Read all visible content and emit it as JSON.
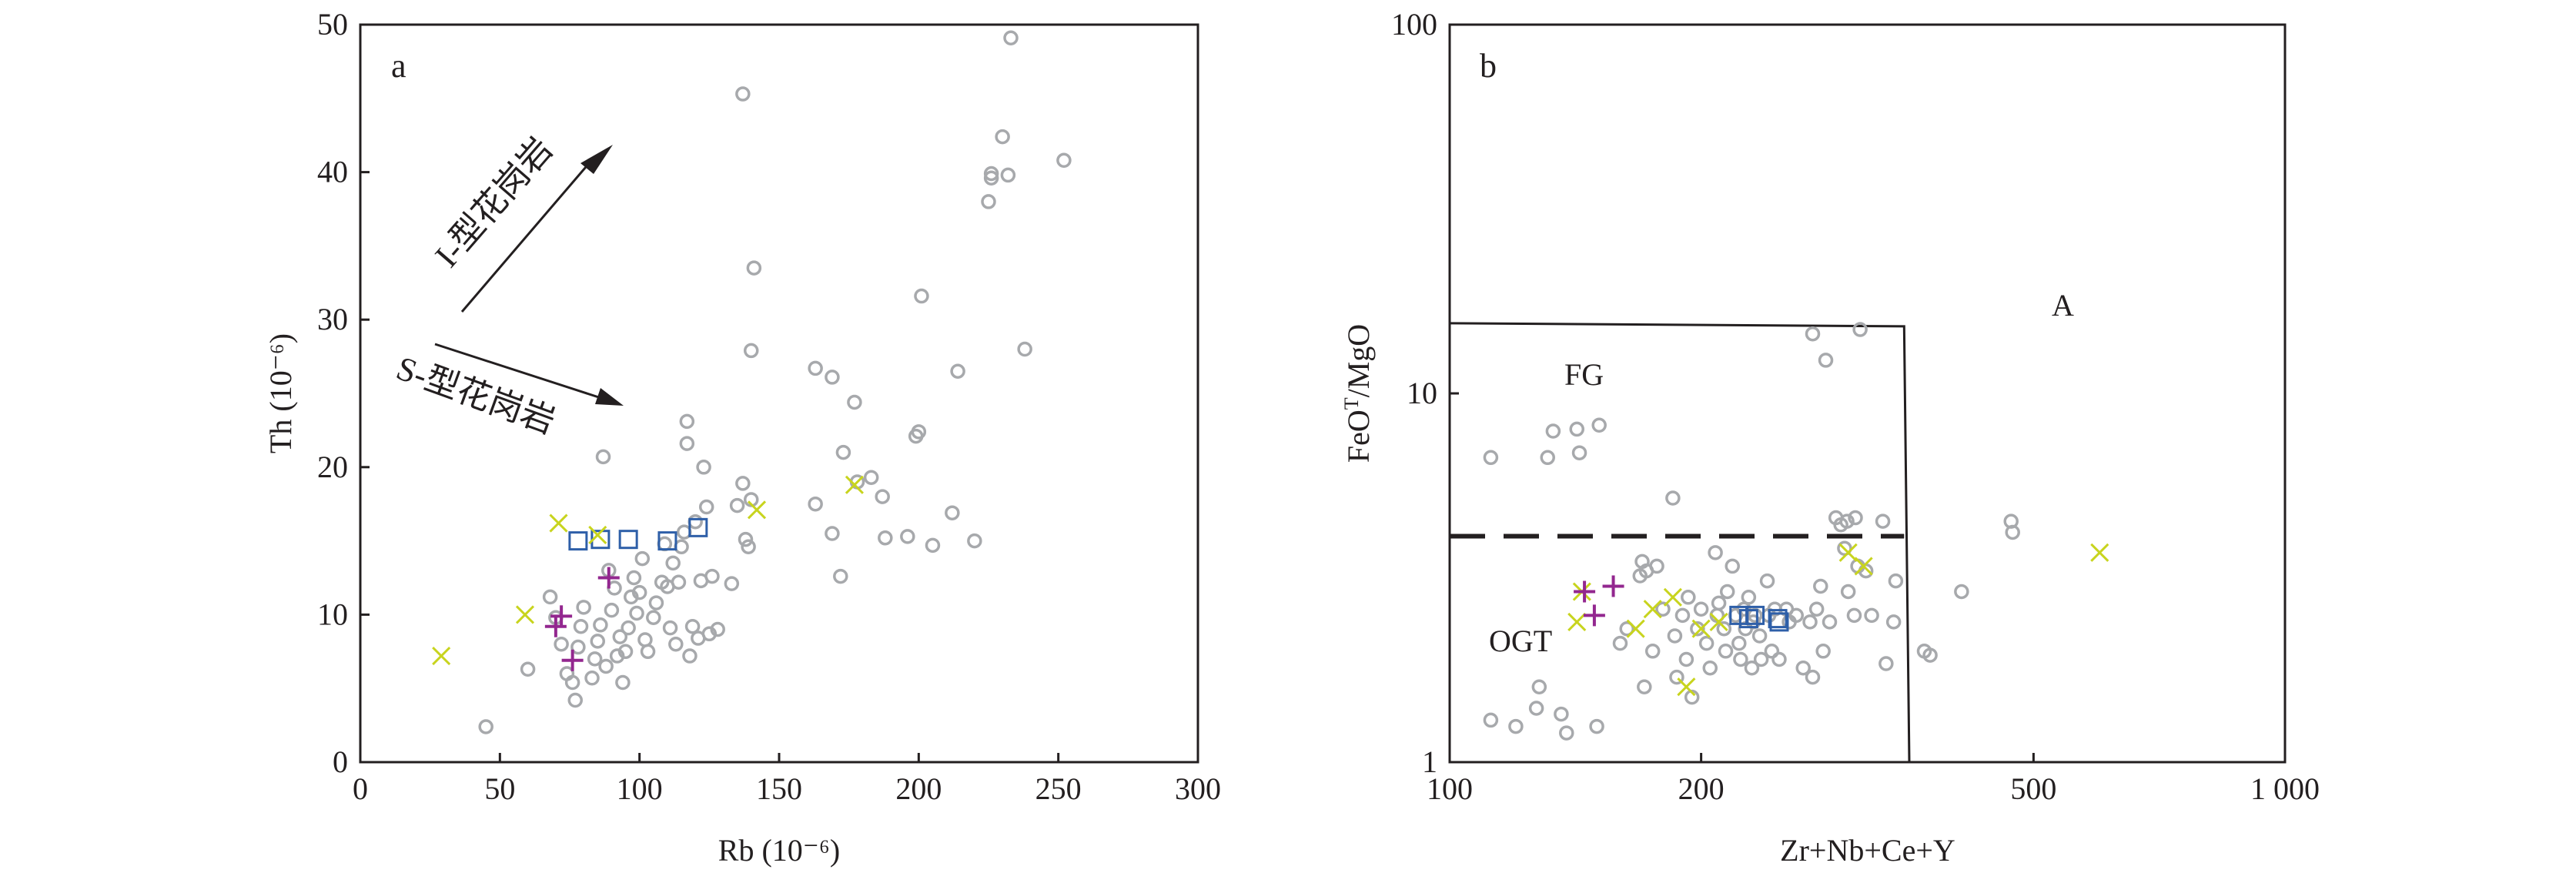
{
  "colors": {
    "circle": "#a7a9ac",
    "square": "#2e5fa8",
    "cross": "#c8d41e",
    "plus": "#93278f",
    "axis": "#231f20"
  },
  "chart_data": [
    {
      "type": "scatter",
      "panel_label": "a",
      "xlabel": "Rb (10⁻⁶)",
      "ylabel": "Th (10⁻⁶)",
      "xlim": [
        0,
        300
      ],
      "ylim": [
        0,
        50
      ],
      "xticks": [
        "0",
        "50",
        "100",
        "150",
        "200",
        "250",
        "300"
      ],
      "yticks": [
        "0",
        "10",
        "20",
        "30",
        "40",
        "50"
      ],
      "annotations": {
        "i_type_arrow": "I-型花岗岩",
        "s_type_arrow": "S-型花岗岩"
      },
      "series": [
        {
          "marker": "circle",
          "points": [
            [
              45,
              2.4
            ],
            [
              60,
              6.3
            ],
            [
              68,
              11.2
            ],
            [
              70,
              9.8
            ],
            [
              72,
              8.0
            ],
            [
              74,
              6.0
            ],
            [
              76,
              5.4
            ],
            [
              77,
              4.2
            ],
            [
              78,
              7.8
            ],
            [
              79,
              9.2
            ],
            [
              80,
              10.5
            ],
            [
              83,
              5.7
            ],
            [
              84,
              7.0
            ],
            [
              85,
              8.2
            ],
            [
              86,
              9.3
            ],
            [
              87,
              20.7
            ],
            [
              88,
              6.5
            ],
            [
              89,
              13.0
            ],
            [
              90,
              10.3
            ],
            [
              91,
              11.8
            ],
            [
              92,
              7.2
            ],
            [
              93,
              8.5
            ],
            [
              94,
              5.4
            ],
            [
              95,
              7.5
            ],
            [
              96,
              9.1
            ],
            [
              97,
              11.2
            ],
            [
              98,
              12.5
            ],
            [
              99,
              10.1
            ],
            [
              100,
              11.5
            ],
            [
              101,
              13.8
            ],
            [
              102,
              8.3
            ],
            [
              103,
              7.5
            ],
            [
              105,
              9.8
            ],
            [
              106,
              10.8
            ],
            [
              108,
              12.2
            ],
            [
              109,
              14.8
            ],
            [
              110,
              11.9
            ],
            [
              111,
              9.1
            ],
            [
              112,
              13.5
            ],
            [
              113,
              8.0
            ],
            [
              114,
              12.2
            ],
            [
              115,
              14.6
            ],
            [
              116,
              15.6
            ],
            [
              117,
              23.1
            ],
            [
              117,
              21.6
            ],
            [
              118,
              7.2
            ],
            [
              119,
              9.2
            ],
            [
              120,
              16.3
            ],
            [
              121,
              8.4
            ],
            [
              122,
              12.3
            ],
            [
              123,
              20.0
            ],
            [
              124,
              17.3
            ],
            [
              125,
              8.7
            ],
            [
              126,
              12.6
            ],
            [
              128,
              9.0
            ],
            [
              133,
              12.1
            ],
            [
              135,
              17.4
            ],
            [
              137,
              18.9
            ],
            [
              137,
              45.3
            ],
            [
              138,
              15.1
            ],
            [
              139,
              14.6
            ],
            [
              140,
              17.8
            ],
            [
              140,
              27.9
            ],
            [
              141,
              33.5
            ],
            [
              163,
              26.7
            ],
            [
              163,
              17.5
            ],
            [
              169,
              15.5
            ],
            [
              169,
              26.1
            ],
            [
              172,
              12.6
            ],
            [
              173,
              21.0
            ],
            [
              177,
              24.4
            ],
            [
              178,
              19.0
            ],
            [
              183,
              19.3
            ],
            [
              187,
              18.0
            ],
            [
              188,
              15.2
            ],
            [
              196,
              15.3
            ],
            [
              199,
              22.1
            ],
            [
              200,
              22.4
            ],
            [
              201,
              31.6
            ],
            [
              205,
              14.7
            ],
            [
              212,
              16.9
            ],
            [
              214,
              26.5
            ],
            [
              220,
              15.0
            ],
            [
              225,
              38.0
            ],
            [
              226,
              39.6
            ],
            [
              226,
              39.9
            ],
            [
              230,
              42.4
            ],
            [
              232,
              39.8
            ],
            [
              233,
              49.1
            ],
            [
              238,
              28.0
            ],
            [
              252,
              40.8
            ]
          ]
        },
        {
          "marker": "square",
          "points": [
            [
              78,
              15.0
            ],
            [
              86,
              15.1
            ],
            [
              96,
              15.1
            ],
            [
              110,
              15.0
            ],
            [
              121,
              15.9
            ]
          ]
        },
        {
          "marker": "cross",
          "points": [
            [
              29,
              7.2
            ],
            [
              59,
              10.0
            ],
            [
              71,
              16.2
            ],
            [
              85,
              15.4
            ],
            [
              142,
              17.1
            ],
            [
              177,
              18.8
            ]
          ]
        },
        {
          "marker": "plus",
          "points": [
            [
              70,
              9.2
            ],
            [
              72,
              9.9
            ],
            [
              76,
              6.9
            ],
            [
              89,
              12.5
            ]
          ]
        }
      ]
    },
    {
      "type": "scatter",
      "panel_label": "b",
      "xlabel": "Zr+Nb+Ce+Y",
      "ylabel": "FeO<sup>T</sup>/MgO",
      "ylabel_text": "FeOT/MgO",
      "x_scale": "log",
      "y_scale": "log",
      "xlim": [
        100,
        1000
      ],
      "ylim": [
        1,
        100
      ],
      "xticks": [
        "100",
        "200",
        "500",
        "1 000"
      ],
      "yticks": [
        "1",
        "10",
        "100"
      ],
      "region_labels": {
        "fg": "FG",
        "ogt": "OGT",
        "a": "A"
      },
      "boundaries": {
        "solid": [
          [
            100,
            15.5
          ],
          [
            350,
            15.2
          ],
          [
            355,
            1
          ]
        ],
        "dashed": [
          [
            100,
            4.1
          ],
          [
            350,
            4.1
          ]
        ]
      },
      "series": [
        {
          "marker": "circle",
          "points": [
            [
              112,
              6.7
            ],
            [
              112,
              1.3
            ],
            [
              120,
              1.25
            ],
            [
              127,
              1.4
            ],
            [
              128,
              1.6
            ],
            [
              131,
              6.7
            ],
            [
              133,
              7.9
            ],
            [
              136,
              1.35
            ],
            [
              138,
              1.2
            ],
            [
              142,
              8.0
            ],
            [
              143,
              6.9
            ],
            [
              150,
              1.25
            ],
            [
              151,
              8.2
            ],
            [
              160,
              2.1
            ],
            [
              163,
              2.3
            ],
            [
              169,
              3.2
            ],
            [
              170,
              3.5
            ],
            [
              171,
              1.6
            ],
            [
              172,
              3.3
            ],
            [
              175,
              2.0
            ],
            [
              177,
              3.4
            ],
            [
              180,
              2.6
            ],
            [
              185,
              5.2
            ],
            [
              186,
              2.2
            ],
            [
              187,
              1.7
            ],
            [
              190,
              2.5
            ],
            [
              192,
              1.9
            ],
            [
              193,
              2.8
            ],
            [
              195,
              1.5
            ],
            [
              198,
              2.3
            ],
            [
              200,
              2.6
            ],
            [
              203,
              2.1
            ],
            [
              205,
              1.8
            ],
            [
              208,
              3.7
            ],
            [
              209,
              2.5
            ],
            [
              210,
              2.7
            ],
            [
              213,
              2.3
            ],
            [
              214,
              2.0
            ],
            [
              215,
              2.9
            ],
            [
              218,
              3.4
            ],
            [
              220,
              2.5
            ],
            [
              222,
              2.1
            ],
            [
              223,
              1.9
            ],
            [
              225,
              2.6
            ],
            [
              226,
              2.3
            ],
            [
              228,
              2.8
            ],
            [
              230,
              1.8
            ],
            [
              231,
              2.4
            ],
            [
              232,
              2.5
            ],
            [
              235,
              2.2
            ],
            [
              236,
              1.9
            ],
            [
              240,
              3.1
            ],
            [
              241,
              2.5
            ],
            [
              243,
              2.0
            ],
            [
              245,
              2.6
            ],
            [
              248,
              1.9
            ],
            [
              253,
              2.6
            ],
            [
              255,
              2.4
            ],
            [
              260,
              2.5
            ],
            [
              265,
              1.8
            ],
            [
              270,
              2.4
            ],
            [
              272,
              14.5
            ],
            [
              272,
              1.7
            ],
            [
              275,
              2.6
            ],
            [
              278,
              3.0
            ],
            [
              280,
              2.0
            ],
            [
              282,
              12.3
            ],
            [
              285,
              2.4
            ],
            [
              290,
              4.6
            ],
            [
              294,
              4.4
            ],
            [
              297,
              3.8
            ],
            [
              299,
              4.5
            ],
            [
              300,
              2.9
            ],
            [
              305,
              2.5
            ],
            [
              306,
              4.6
            ],
            [
              308,
              3.4
            ],
            [
              310,
              14.9
            ],
            [
              315,
              3.3
            ],
            [
              320,
              2.5
            ],
            [
              330,
              4.5
            ],
            [
              333,
              1.85
            ],
            [
              340,
              2.4
            ],
            [
              342,
              3.1
            ],
            [
              370,
              2.0
            ],
            [
              376,
              1.95
            ],
            [
              410,
              2.9
            ],
            [
              470,
              4.5
            ],
            [
              472,
              4.2
            ]
          ]
        },
        {
          "marker": "square",
          "points": [
            [
              222,
              2.5
            ],
            [
              228,
              2.45
            ],
            [
              232,
              2.5
            ],
            [
              247,
              2.45
            ],
            [
              248,
              2.4
            ]
          ]
        },
        {
          "marker": "cross",
          "points": [
            [
              142,
              2.4
            ],
            [
              144,
              2.9
            ],
            [
              167,
              2.3
            ],
            [
              175,
              2.6
            ],
            [
              185,
              2.8
            ],
            [
              192,
              1.6
            ],
            [
              200,
              2.3
            ],
            [
              210,
              2.4
            ],
            [
              300,
              3.7
            ],
            [
              313,
              3.4
            ],
            [
              600,
              3.7
            ]
          ]
        },
        {
          "marker": "plus",
          "points": [
            [
              145,
              2.9
            ],
            [
              149,
              2.5
            ],
            [
              157,
              3.0
            ]
          ]
        }
      ]
    }
  ]
}
